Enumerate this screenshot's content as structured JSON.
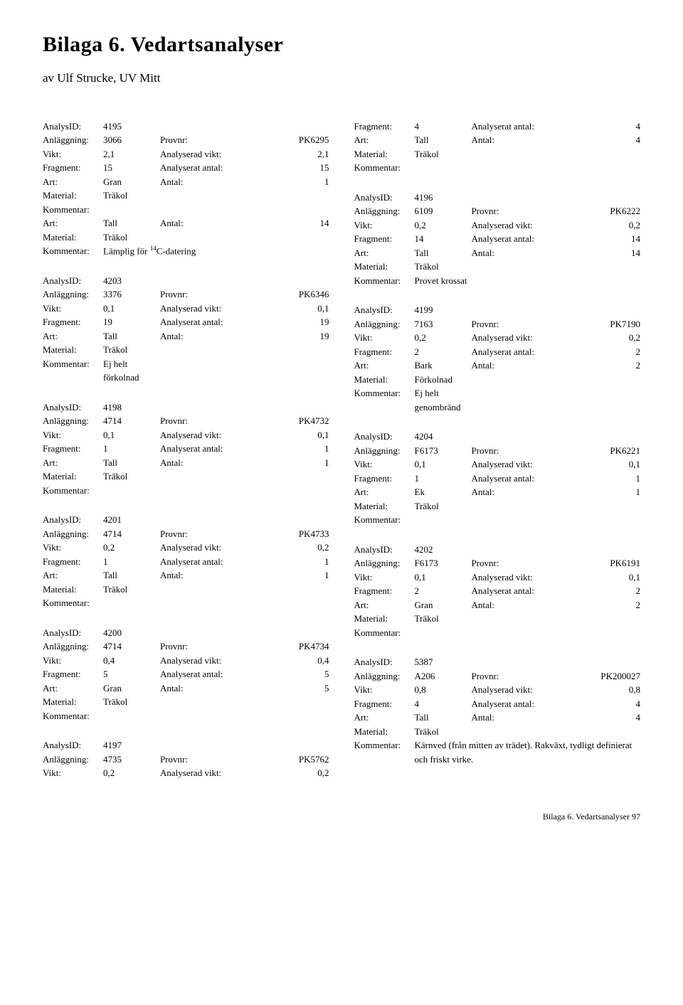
{
  "title": "Bilaga 6. Vedartsanalyser",
  "author": "av Ulf Strucke, UV Mitt",
  "footer": "Bilaga 6. Vedartsanalyser   97",
  "leftColumn": [
    {
      "id": "4195",
      "anlaggning": "3066",
      "provnr": "PK6295",
      "vikt": "2,1",
      "avikt": "2,1",
      "fragment": "15",
      "aantal": "15",
      "art": "Gran",
      "antal": "1",
      "material": "Träkol",
      "kommentar": "",
      "art2": "Tall",
      "antal2": "14",
      "material2": "Träkol",
      "kommentar2": "Lämplig för "
    },
    {
      "id": "4203",
      "anlaggning": "3376",
      "provnr": "PK6346",
      "vikt": "0,1",
      "avikt": "0,1",
      "fragment": "19",
      "aantal": "19",
      "art": "Tall",
      "antal": "19",
      "material": "Träkol",
      "kommentar": "Ej helt förkolnad"
    },
    {
      "id": "4198",
      "anlaggning": "4714",
      "provnr": "PK4732",
      "vikt": "0,1",
      "avikt": "0,1",
      "fragment": "1",
      "aantal": "1",
      "art": "Tall",
      "antal": "1",
      "material": "Träkol",
      "kommentar": ""
    },
    {
      "id": "4201",
      "anlaggning": "4714",
      "provnr": "PK4733",
      "vikt": "0,2",
      "avikt": "0,2",
      "fragment": "1",
      "aantal": "1",
      "art": "Tall",
      "antal": "1",
      "material": "Träkol",
      "kommentar": ""
    },
    {
      "id": "4200",
      "anlaggning": "4714",
      "provnr": "PK4734",
      "vikt": "0,4",
      "avikt": "0,4",
      "fragment": "5",
      "aantal": "5",
      "art": "Gran",
      "antal": "5",
      "material": "Träkol",
      "kommentar": ""
    },
    {
      "id": "4197",
      "anlaggning": "4735",
      "provnr": "PK5762",
      "vikt": "0,2",
      "avikt": "0,2",
      "partial": true
    }
  ],
  "rightColumnTop": {
    "fragment": "4",
    "aantal": "4",
    "art": "Tall",
    "antal": "4",
    "material": "Träkol",
    "kommentar": ""
  },
  "rightColumn": [
    {
      "id": "4196",
      "anlaggning": "6109",
      "provnr": "PK6222",
      "vikt": "0,2",
      "avikt": "0,2",
      "fragment": "14",
      "aantal": "14",
      "art": "Tall",
      "antal": "14",
      "material": "Träkol",
      "kommentar": "Provet krossat"
    },
    {
      "id": "4199",
      "anlaggning": "7163",
      "provnr": "PK7190",
      "vikt": "0,2",
      "avikt": "0,2",
      "fragment": "2",
      "aantal": "2",
      "art": "Bark",
      "antal": "2",
      "material": "Förkolnad",
      "kommentar": "Ej helt genombränd"
    },
    {
      "id": "4204",
      "anlaggning": "F6173",
      "provnr": "PK6221",
      "vikt": "0,1",
      "avikt": "0,1",
      "fragment": "1",
      "aantal": "1",
      "art": "Ek",
      "antal": "1",
      "material": "Träkol",
      "kommentar": ""
    },
    {
      "id": "4202",
      "anlaggning": "F6173",
      "provnr": "PK6191",
      "vikt": "0,1",
      "avikt": "0,1",
      "fragment": "2",
      "aantal": "2",
      "art": "Gran",
      "antal": "2",
      "material": "Träkol",
      "kommentar": ""
    },
    {
      "id": "5387",
      "anlaggning": "A206",
      "provnr": "PK200027",
      "vikt": "0,8",
      "avikt": "0,8",
      "fragment": "4",
      "aantal": "4",
      "art": "Tall",
      "antal": "4",
      "material": "Träkol",
      "kommentar": "Kärnved (från mitten av trädet). Rakväxt, tydligt definierat och friskt virke."
    }
  ],
  "labels": {
    "analysid": "AnalysID:",
    "anlaggning": "Anläggning:",
    "provnr": "Provnr:",
    "vikt": "Vikt:",
    "avikt": "Analyserad vikt:",
    "fragment": "Fragment:",
    "aantal": "Analyserat antal:",
    "art": "Art:",
    "antal": "Antal:",
    "material": "Material:",
    "kommentar": "Kommentar:",
    "cdating": "C-datering"
  }
}
